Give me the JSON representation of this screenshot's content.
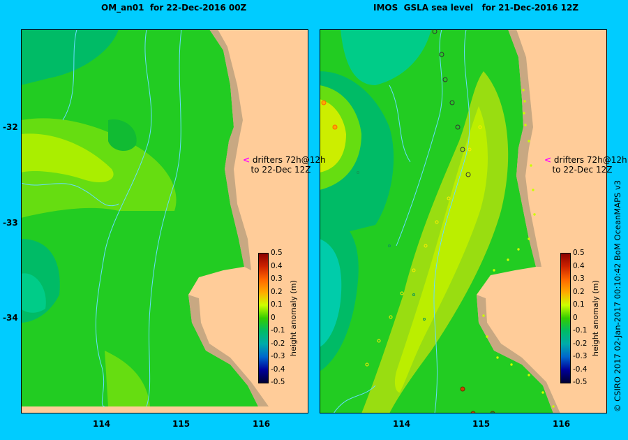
{
  "left_panel": {
    "title": "OM_an01  for 22-Dec-2016 00Z"
  },
  "right_panel": {
    "title": "IMOS  GSLA sea level   for 21-Dec-2016 12Z"
  },
  "axes": {
    "y_ticks": [
      "-32",
      "-33",
      "-34"
    ],
    "x_ticks": [
      "114",
      "115",
      "116"
    ]
  },
  "drifter_note": {
    "line1": "drifters 72h@12h",
    "line2": "to 22-Dec 12Z",
    "arrow_color": "#ff00ff"
  },
  "colorbar": {
    "title": "height anomaly  (m)",
    "labels": [
      "0.5",
      "0.4",
      "0.3",
      "0.2",
      "0.1",
      "0",
      "-0.1",
      "-0.2",
      "-0.3",
      "-0.4",
      "-0.5"
    ],
    "colors": [
      "#8b0000",
      "#cc2200",
      "#ff6600",
      "#ffaa00",
      "#ccff00",
      "#33cc00",
      "#00bb66",
      "#00aaaa",
      "#0066cc",
      "#000099",
      "#000033"
    ]
  },
  "credit": "© CSIRO 2017   02-Jan-2017 00:10:42 BoM OceanMAPS v3",
  "colors": {
    "background": "#00ccff",
    "land": "#ffcc99",
    "shelf": "#c8a882",
    "current_lines": "#66ddff"
  }
}
